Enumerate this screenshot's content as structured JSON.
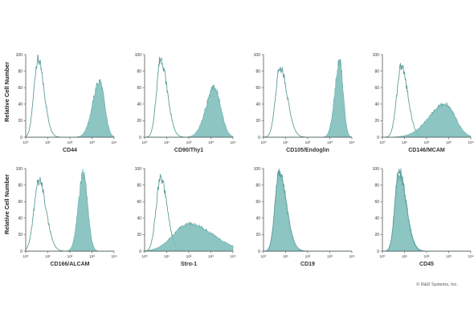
{
  "figure": {
    "y_axis_label": "Relative Cell Number",
    "copyright": "© R&D Systems, Inc.",
    "colors": {
      "filled": "#7fbfbb",
      "filled_edge": "#5fa6a1",
      "outline": "#5e9f9a",
      "axis": "#555555"
    }
  },
  "chart_data": [
    {
      "type": "area",
      "name": "CD44",
      "xlabel": "CD44",
      "ylabel": "Relative Cell Number",
      "x_scale": "log",
      "xlim": [
        1,
        10000
      ],
      "ylim": [
        0,
        100
      ],
      "yticks": [
        "0",
        "20",
        "40",
        "60",
        "80",
        "100"
      ],
      "xticks": [
        "10⁰",
        "10¹",
        "10²",
        "10³",
        "10⁴"
      ],
      "series": [
        {
          "style": "outline",
          "peaks": [
            {
              "x": 0.55,
              "height": 94,
              "w": 0.18,
              "w2": 0.28
            }
          ]
        },
        {
          "style": "filled",
          "peaks": [
            {
              "x": 3.35,
              "height": 68,
              "w": 0.32,
              "w2": 0.22
            }
          ]
        }
      ]
    },
    {
      "type": "area",
      "name": "CD90/Thy1",
      "xlabel": "CD90/Thy1",
      "ylabel": "",
      "x_scale": "log",
      "xlim": [
        1,
        10000
      ],
      "ylim": [
        0,
        100
      ],
      "yticks": [
        "0",
        "20",
        "40",
        "60",
        "80",
        "100"
      ],
      "xticks": [
        "10⁰",
        "10¹",
        "10²",
        "10³",
        "10⁴"
      ],
      "series": [
        {
          "style": "outline",
          "peaks": [
            {
              "x": 0.72,
              "height": 95,
              "w": 0.18,
              "w2": 0.3
            }
          ]
        },
        {
          "style": "filled",
          "peaks": [
            {
              "x": 3.15,
              "height": 60,
              "w": 0.38,
              "w2": 0.3
            }
          ]
        }
      ]
    },
    {
      "type": "area",
      "name": "CD105/Endoglin",
      "xlabel": "CD105/Endoglin",
      "ylabel": "",
      "x_scale": "log",
      "xlim": [
        1,
        10000
      ],
      "ylim": [
        0,
        100
      ],
      "yticks": [
        "0",
        "20",
        "40",
        "60",
        "80",
        "100"
      ],
      "xticks": [
        "10⁰",
        "10¹",
        "10²",
        "10³",
        "10⁴"
      ],
      "series": [
        {
          "style": "outline",
          "peaks": [
            {
              "x": 0.75,
              "height": 85,
              "w": 0.2,
              "w2": 0.32
            }
          ]
        },
        {
          "style": "filled",
          "peaks": [
            {
              "x": 3.45,
              "height": 92,
              "w": 0.22,
              "w2": 0.16
            }
          ]
        }
      ]
    },
    {
      "type": "area",
      "name": "CD146/MCAM",
      "xlabel": "CD146/MCAM",
      "ylabel": "",
      "x_scale": "log",
      "xlim": [
        1,
        10000
      ],
      "ylim": [
        0,
        100
      ],
      "yticks": [
        "0",
        "20",
        "40",
        "60",
        "80",
        "100"
      ],
      "xticks": [
        "10⁰",
        "10¹",
        "10²",
        "10³",
        "10⁴"
      ],
      "series": [
        {
          "style": "outline",
          "peaks": [
            {
              "x": 0.85,
              "height": 86,
              "w": 0.2,
              "w2": 0.3
            }
          ]
        },
        {
          "style": "filled",
          "peaks": [
            {
              "x": 2.85,
              "height": 40,
              "w": 0.75,
              "w2": 0.45
            }
          ]
        }
      ]
    },
    {
      "type": "area",
      "name": "CD166/ALCAM",
      "xlabel": "CD166/ALCAM",
      "ylabel": "Relative Cell Number",
      "x_scale": "log",
      "xlim": [
        1,
        10000
      ],
      "ylim": [
        0,
        100
      ],
      "yticks": [
        "0",
        "20",
        "40",
        "60",
        "80",
        "100"
      ],
      "xticks": [
        "10⁰",
        "10¹",
        "10²",
        "10³",
        "10⁴"
      ],
      "series": [
        {
          "style": "outline",
          "peaks": [
            {
              "x": 0.6,
              "height": 86,
              "w": 0.22,
              "w2": 0.32
            }
          ]
        },
        {
          "style": "filled",
          "peaks": [
            {
              "x": 2.6,
              "height": 95,
              "w": 0.22,
              "w2": 0.2
            }
          ]
        }
      ]
    },
    {
      "type": "area",
      "name": "Stro-1",
      "xlabel": "Stro-1",
      "ylabel": "",
      "x_scale": "log",
      "xlim": [
        1,
        10000
      ],
      "ylim": [
        0,
        100
      ],
      "yticks": [
        "0",
        "20",
        "40",
        "60",
        "80",
        "100"
      ],
      "xticks": [
        "10⁰",
        "10¹",
        "10²",
        "10³",
        "10⁴"
      ],
      "series": [
        {
          "style": "outline",
          "peaks": [
            {
              "x": 0.72,
              "height": 88,
              "w": 0.2,
              "w2": 0.3
            }
          ]
        },
        {
          "style": "filled",
          "peaks": [
            {
              "x": 2.0,
              "height": 33,
              "w": 0.7,
              "w2": 1.1
            }
          ]
        }
      ]
    },
    {
      "type": "area",
      "name": "CD19",
      "xlabel": "CD19",
      "ylabel": "",
      "x_scale": "log",
      "xlim": [
        1,
        10000
      ],
      "ylim": [
        0,
        100
      ],
      "yticks": [
        "0",
        "20",
        "40",
        "60",
        "80",
        "100"
      ],
      "xticks": [
        "10⁰",
        "10¹",
        "10²",
        "10³",
        "10⁴"
      ],
      "series": [
        {
          "style": "filled",
          "peaks": [
            {
              "x": 0.7,
              "height": 96,
              "w": 0.18,
              "w2": 0.32
            }
          ]
        },
        {
          "style": "outline",
          "peaks": [
            {
              "x": 0.7,
              "height": 95,
              "w": 0.18,
              "w2": 0.34
            }
          ]
        }
      ]
    },
    {
      "type": "area",
      "name": "CD45",
      "xlabel": "CD45",
      "ylabel": "",
      "x_scale": "log",
      "xlim": [
        1,
        10000
      ],
      "ylim": [
        0,
        100
      ],
      "yticks": [
        "0",
        "20",
        "40",
        "60",
        "80",
        "100"
      ],
      "xticks": [
        "10⁰",
        "10¹",
        "10²",
        "10³",
        "10⁴"
      ],
      "series": [
        {
          "style": "filled",
          "peaks": [
            {
              "x": 0.75,
              "height": 93,
              "w": 0.18,
              "w2": 0.34
            }
          ]
        },
        {
          "style": "outline",
          "peaks": [
            {
              "x": 0.75,
              "height": 98,
              "w": 0.18,
              "w2": 0.32
            }
          ]
        }
      ]
    }
  ]
}
